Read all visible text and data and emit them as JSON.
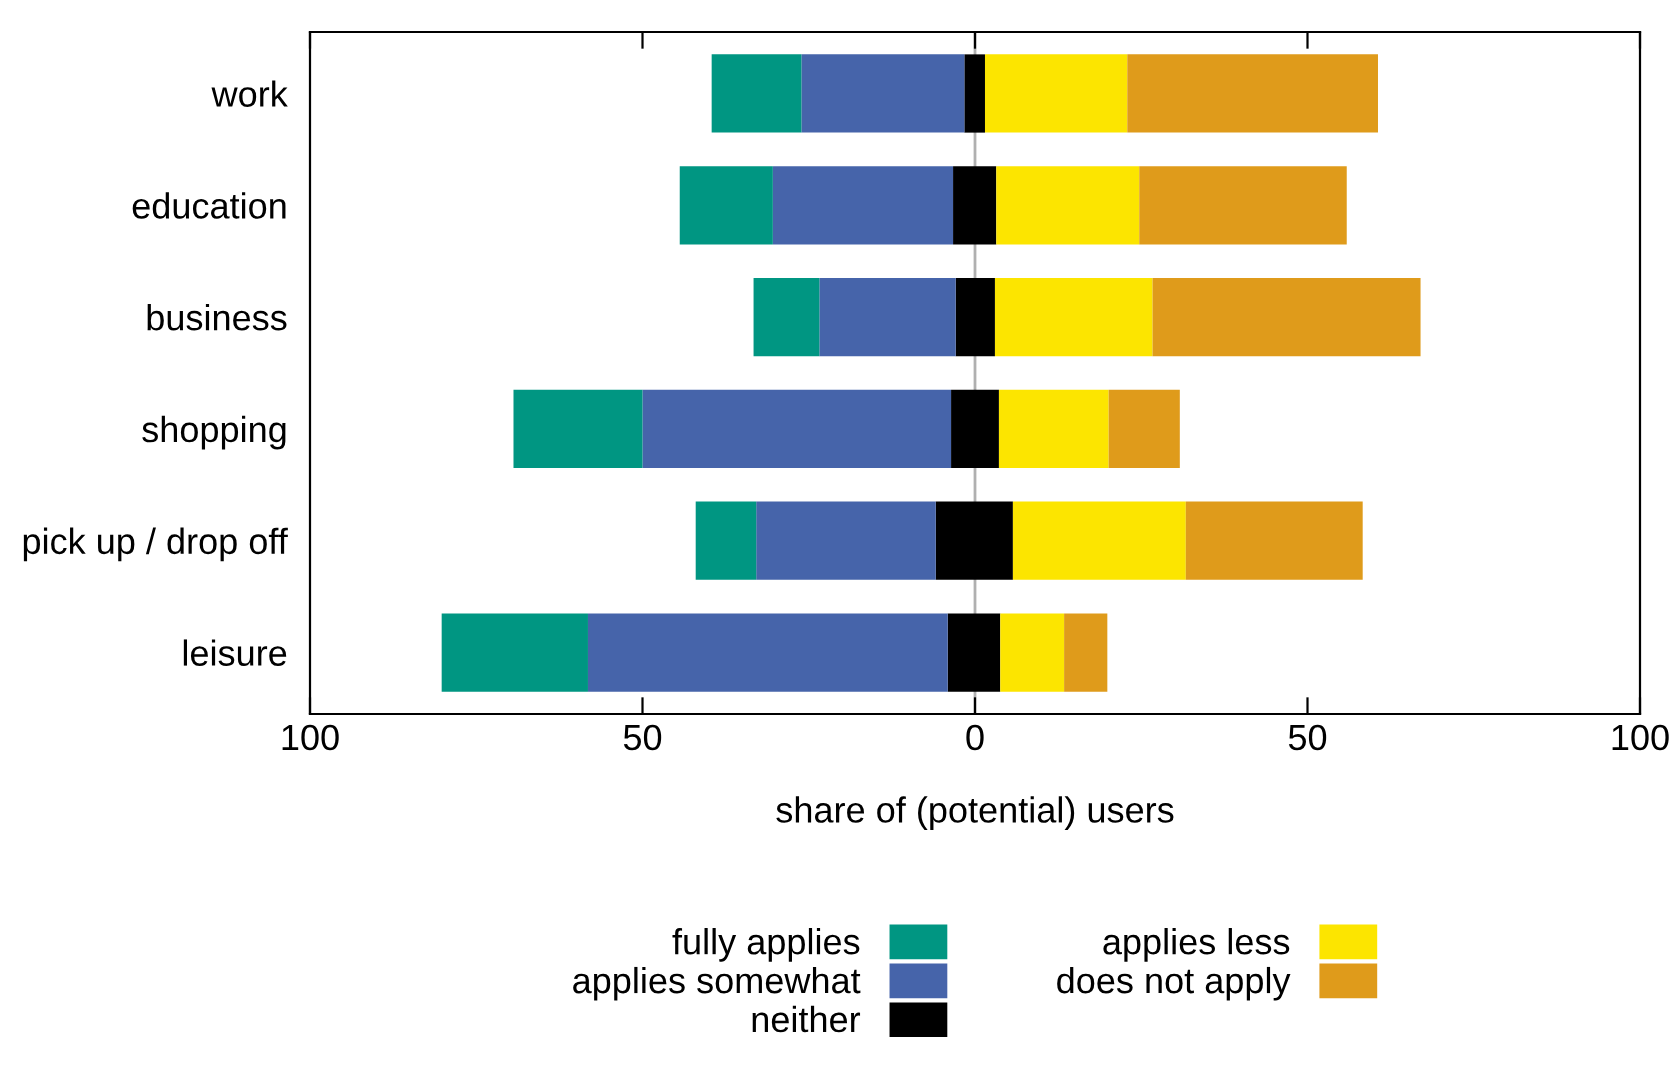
{
  "chart_data": {
    "type": "bar",
    "orientation": "horizontal",
    "stacked": true,
    "categories": [
      "work",
      "education",
      "business",
      "shopping",
      "pick up / drop off",
      "leisure"
    ],
    "series": [
      {
        "color": "#000000",
        "values": [
          -1.6,
          -3.3,
          -2.9,
          -3.6,
          -5.9,
          -4.1
        ]
      },
      {
        "name": "applies somewhat",
        "color": "#4664aa",
        "values": [
          -24.5,
          -27.1,
          -20.5,
          -46.4,
          -27.0,
          -54.1
        ]
      },
      {
        "name": "fully applies",
        "color": "#009682",
        "values": [
          -13.5,
          -14.0,
          -9.9,
          -19.4,
          -9.1,
          -22.0
        ]
      },
      {
        "name": "neither",
        "color": "#000000",
        "values": [
          1.5,
          3.2,
          3.0,
          3.6,
          5.7,
          3.8
        ]
      },
      {
        "name": "applies less",
        "color": "#fce500",
        "values": [
          21.4,
          21.5,
          23.7,
          16.5,
          26.0,
          9.6
        ]
      },
      {
        "name": "does not apply",
        "color": "#df9b1b",
        "values": [
          37.7,
          31.2,
          40.3,
          10.7,
          26.6,
          6.5
        ]
      }
    ],
    "xlabel": "share of (potential) users",
    "xlim": [
      -100,
      100
    ],
    "xticks": [
      {
        "value": -100,
        "label": "100"
      },
      {
        "value": -50,
        "label": "50"
      },
      0,
      50,
      100
    ],
    "ref_lines": [
      {
        "axis": "x",
        "value": 0,
        "label": null,
        "color": "#b0b0b0"
      }
    ],
    "legend": "bottom",
    "grid": false
  }
}
